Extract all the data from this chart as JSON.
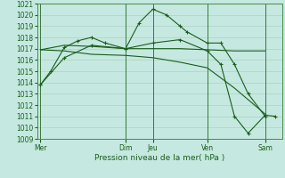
{
  "background_color": "#c5e8e0",
  "grid_color": "#aaccbb",
  "line_color": "#1a5e1a",
  "xlabel": "Pression niveau de la mer( hPa )",
  "ylim": [
    1009,
    1021
  ],
  "yticks": [
    1009,
    1010,
    1011,
    1012,
    1013,
    1014,
    1015,
    1016,
    1017,
    1018,
    1019,
    1020,
    1021
  ],
  "xlim": [
    0,
    36
  ],
  "day_labels": [
    "Mer",
    "Dim",
    "Jeu",
    "Ven",
    "Sam"
  ],
  "day_positions": [
    0.5,
    13,
    17,
    25,
    33.5
  ],
  "vline_positions": [
    0.5,
    13,
    17,
    25,
    33.5
  ],
  "series1_x": [
    0.5,
    2,
    4,
    6,
    8,
    10,
    13,
    15,
    17,
    19,
    21,
    22,
    25,
    27,
    29,
    31,
    33.5
  ],
  "series1_y": [
    1013.8,
    1015.0,
    1017.1,
    1017.7,
    1018.0,
    1017.5,
    1017.0,
    1019.3,
    1020.5,
    1020.0,
    1019.0,
    1018.5,
    1017.5,
    1017.5,
    1015.6,
    1013.0,
    1011.0
  ],
  "series2_x": [
    0.5,
    4,
    8,
    13,
    17,
    21,
    25,
    29,
    33.5
  ],
  "series2_y": [
    1016.9,
    1017.3,
    1017.2,
    1017.0,
    1017.0,
    1017.0,
    1016.9,
    1016.8,
    1016.8
  ],
  "series3_x": [
    0.5,
    4,
    8,
    13,
    17,
    21,
    25,
    29,
    33.5
  ],
  "series3_y": [
    1016.9,
    1016.8,
    1016.5,
    1016.4,
    1016.2,
    1015.8,
    1015.3,
    1013.5,
    1011.2
  ],
  "series4_x": [
    0.5,
    4,
    8,
    13,
    17,
    21,
    25,
    27,
    29,
    31,
    33.5,
    35
  ],
  "series4_y": [
    1013.8,
    1016.2,
    1017.3,
    1017.0,
    1017.5,
    1017.8,
    1016.8,
    1015.6,
    1011.0,
    1009.5,
    1011.1,
    1011.0
  ],
  "ylabel_fontsize": 5.5,
  "xlabel_fontsize": 6.5,
  "tick_fontsize": 5.5
}
